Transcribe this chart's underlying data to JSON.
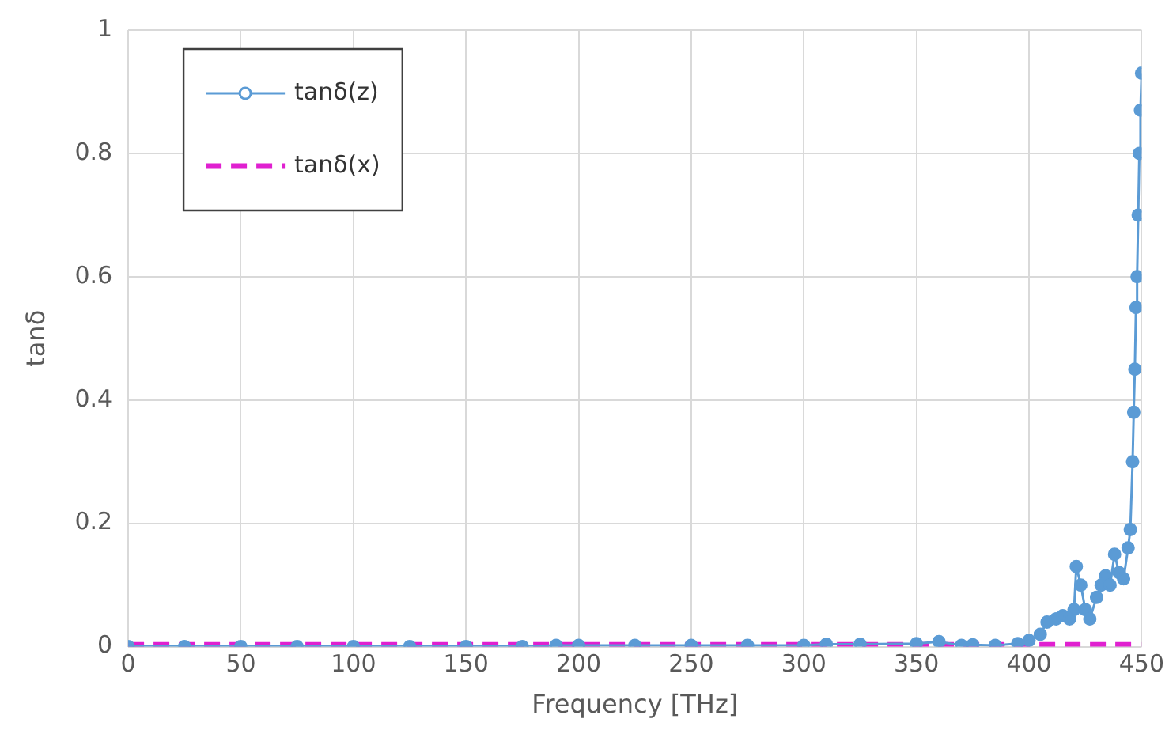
{
  "chart_data": {
    "type": "line",
    "xlabel": "Frequency [THz]",
    "ylabel": "tanδ",
    "xlim": [
      0,
      450
    ],
    "xticks": [
      0,
      50,
      100,
      150,
      200,
      250,
      300,
      350,
      400,
      450
    ],
    "ylim": [
      0,
      1
    ],
    "yticks": [
      0,
      0.2,
      0.4,
      0.6,
      0.8,
      1
    ],
    "grid": true,
    "legend": "top left",
    "series": [
      {
        "name": "tanδ(z)",
        "color": "#5b9bd5",
        "marker": "circle",
        "line_style": "solid",
        "x": [
          0,
          25,
          50,
          75,
          100,
          125,
          150,
          175,
          190,
          200,
          225,
          250,
          275,
          300,
          310,
          325,
          350,
          360,
          370,
          375,
          385,
          395,
          400,
          405,
          408,
          412,
          415,
          418,
          420,
          421,
          423,
          425,
          427,
          430,
          432,
          434,
          436,
          438,
          440,
          442,
          444,
          445,
          446,
          446.5,
          447,
          447.5,
          448,
          448.5,
          449,
          449.5,
          450
        ],
        "values": [
          0,
          0,
          0,
          0,
          0,
          0,
          0,
          0,
          0.002,
          0.002,
          0.002,
          0.002,
          0.002,
          0.002,
          0.004,
          0.004,
          0.005,
          0.008,
          0.002,
          0.003,
          0.002,
          0.005,
          0.01,
          0.02,
          0.04,
          0.045,
          0.05,
          0.045,
          0.06,
          0.13,
          0.1,
          0.06,
          0.045,
          0.08,
          0.1,
          0.115,
          0.1,
          0.15,
          0.12,
          0.11,
          0.16,
          0.19,
          0.3,
          0.38,
          0.45,
          0.55,
          0.6,
          0.7,
          0.8,
          0.87,
          0.93
        ]
      },
      {
        "name": "tanδ(x)",
        "color": "#e020d0",
        "marker": "none",
        "line_style": "dashed",
        "x": [
          0,
          450
        ],
        "values": [
          0.003,
          0.003
        ]
      }
    ]
  }
}
